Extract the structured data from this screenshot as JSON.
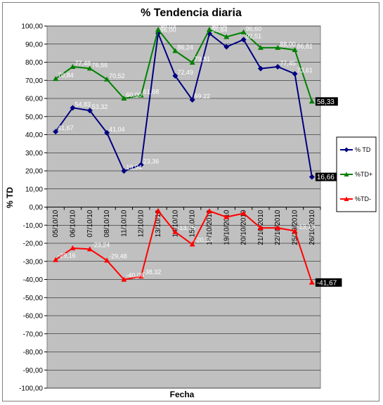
{
  "chart_data": {
    "type": "line",
    "title": "% Tendencia diaria",
    "xlabel": "Fecha",
    "ylabel": "% TD",
    "ylim": [
      -100,
      100
    ],
    "ytick_step": 10,
    "grid": true,
    "legend_position": "right",
    "categories": [
      "05/10/10",
      "06/10/10",
      "07/10/10",
      "08/10/10",
      "11/10/10",
      "12/10/10",
      "13/10/10",
      "14/10/10",
      "15/10/10",
      "18/10/2010",
      "19/10/2010",
      "20/10/2010",
      "21/10/2010",
      "22/10/2010",
      "25/10/2010",
      "26/10/2010"
    ],
    "ytick_labels": [
      "100,00",
      "90,00",
      "80,00",
      "70,00",
      "60,00",
      "50,00",
      "40,00",
      "30,00",
      "20,00",
      "10,00",
      "0,00",
      "-10,00",
      "-20,00",
      "-30,00",
      "-40,00",
      "-50,00",
      "-60,00",
      "-70,00",
      "-80,00",
      "-90,00",
      "-100,00"
    ],
    "series": [
      {
        "name": "% TD",
        "color": "#000080",
        "marker": "diamond",
        "values": [
          41.67,
          54.83,
          53.32,
          41.04,
          19.94,
          23.36,
          96.0,
          72.49,
          59.22,
          95.84,
          88.5,
          92.5,
          76.5,
          77.5,
          73.61,
          16.66
        ],
        "labels": [
          "41,67",
          "54,83",
          "53,32",
          "41,04",
          "19,94",
          "23,36",
          "96,00",
          "72,49",
          "59,22",
          "95,84",
          "",
          "92,51",
          "",
          "77,45",
          "73,61",
          "16,66"
        ]
      },
      {
        "name": "%TD+",
        "color": "#008000",
        "marker": "triangle",
        "values": [
          70.84,
          77.5,
          76.56,
          70.52,
          60.0,
          61.68,
          98.03,
          86.24,
          79.81,
          98.04,
          94.0,
          96.6,
          88.0,
          88.0,
          86.81,
          58.33
        ],
        "labels": [
          "70,84",
          "77,48",
          "76,56",
          "70,52",
          "60,00",
          "61,68",
          "98,03",
          "86,24",
          "79,81",
          "98,04",
          "",
          "96,60",
          "",
          "88,00",
          "86,81",
          "58,33"
        ]
      },
      {
        "name": "%TD-",
        "color": "#ff0000",
        "marker": "triangle",
        "values": [
          -29.16,
          -22.66,
          -23.24,
          -29.48,
          -40.06,
          -38.32,
          -2.03,
          -13.75,
          -20.59,
          -2.2,
          -5.5,
          -3.5,
          -11.5,
          -11.5,
          -13.19,
          -41.67
        ],
        "labels": [
          "-29,16",
          "",
          "-23,24",
          "-29,48",
          "-40,06",
          "-38,32",
          "",
          "-13,75",
          "-20,59",
          "",
          "",
          "",
          "",
          "",
          "-13,19",
          "-41,67"
        ]
      }
    ],
    "last_value_boxes": [
      "16,66",
      "58,33",
      "-41,67"
    ]
  }
}
